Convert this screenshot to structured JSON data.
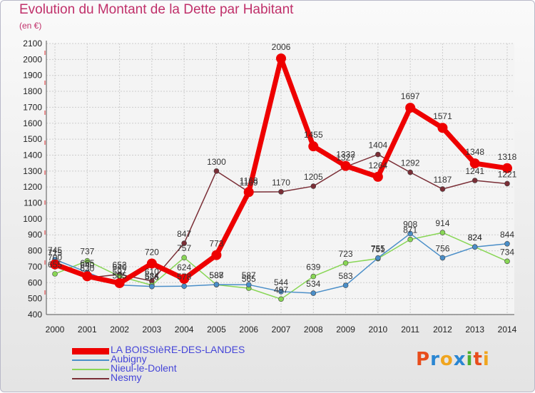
{
  "title": "Evolution du Montant de la Dette par Habitant",
  "unit_label": "(en €)",
  "logo": {
    "letters": [
      "P",
      "r",
      "o",
      "x",
      "i",
      "t",
      "i"
    ],
    "colors": [
      "#e84d1c",
      "#2a86d2",
      "#f0a51f",
      "#2a86d2",
      "#4caf30",
      "#e84d1c",
      "#f0a51f"
    ]
  },
  "chart_data": {
    "type": "line",
    "x": [
      "2000",
      "2001",
      "2002",
      "2003",
      "2004",
      "2005",
      "2006",
      "2007",
      "2008",
      "2009",
      "2010",
      "2011",
      "2012",
      "2013",
      "2014"
    ],
    "yticks": [
      400,
      500,
      600,
      700,
      800,
      900,
      1000,
      1100,
      1200,
      1300,
      1400,
      1500,
      1600,
      1700,
      1800,
      1900,
      2000,
      2100
    ],
    "ylim": [
      400,
      2100
    ],
    "grid": true,
    "legend_position": "bottom-left",
    "series": [
      {
        "name": "LA BOISSIèRE-DES-LANDES",
        "color": "#ee0000",
        "values": [
          715,
          640,
          597,
          720,
          624,
          773,
          1168,
          2006,
          1455,
          1332,
          1264,
          1697,
          1571,
          1348,
          1318
        ],
        "labels": [
          "715",
          "640",
          "597",
          "720",
          "624",
          "773",
          "1168",
          "2006",
          "1455",
          "1332",
          "1264",
          "1697",
          "1571",
          "1348",
          "1318"
        ]
      },
      {
        "name": "Aubigny",
        "color": "#4a8ec8",
        "values": [
          745,
          665,
          585,
          576,
          578,
          588,
          587,
          544,
          534,
          583,
          755,
          908,
          756,
          824,
          844
        ],
        "labels": [
          "745",
          "665",
          "585",
          "576",
          "578",
          "588",
          "587",
          "544",
          "534",
          "583",
          "755",
          "908",
          "756",
          "824",
          "844"
        ]
      },
      {
        "name": "Nieul-le-Dolent",
        "color": "#88d655",
        "values": [
          655,
          737,
          640,
          584,
          757,
          587,
          565,
          497,
          639,
          723,
          751,
          871,
          914,
          824,
          734
        ],
        "labels": [
          "655",
          "737",
          "640",
          "584",
          "757",
          "587",
          "565",
          "497",
          "639",
          "723",
          "751",
          "871",
          "914",
          "824",
          "734"
        ]
      },
      {
        "name": "Nesmy",
        "color": "#7a2e36",
        "values": [
          700,
          630,
          652,
          610,
          847,
          1300,
          1169,
          1170,
          1205,
          1327,
          1404,
          1292,
          1187,
          1241,
          1221
        ],
        "labels": [
          "700",
          "630",
          "652",
          "610",
          "847",
          "1300",
          "1169",
          "1170",
          "1205",
          "1327",
          "1404",
          "1292",
          "1187",
          "1241",
          "1221"
        ]
      }
    ]
  }
}
